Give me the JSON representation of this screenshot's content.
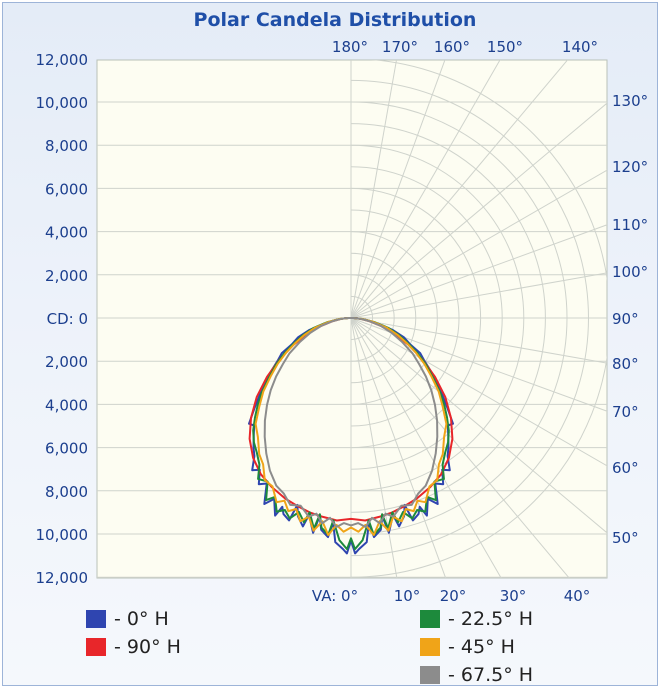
{
  "colors": {
    "plot_bg": "#fdfdf2",
    "grid": "#cfd3cc",
    "axis_text": "#1c3f8e",
    "title": "#1f4fa8"
  },
  "chart_data": {
    "type": "line",
    "title": "Polar Candela Distribution",
    "left_axis": {
      "ticks": [
        "12,000",
        "10,000",
        "8,000",
        "6,000",
        "4,000",
        "2,000",
        "CD: 0",
        "2,000",
        "4,000",
        "6,000",
        "8,000",
        "10,000",
        "12,000"
      ],
      "range": [
        -12000,
        12000
      ]
    },
    "top_angle_labels": [
      "180°",
      "170°",
      "160°",
      "150°",
      "140°"
    ],
    "right_angle_labels": [
      "130°",
      "120°",
      "110°",
      "100°",
      "90°",
      "80°",
      "70°",
      "60°",
      "50°"
    ],
    "bottom_labels": [
      "VA: 0°",
      "10°",
      "20°",
      "30°",
      "40°"
    ],
    "radial_rings_cd": [
      1000,
      2000,
      3000,
      4000,
      5000,
      6000,
      7000,
      8000,
      9000,
      10000,
      11000,
      12000
    ],
    "angle_spokes_deg": [
      0,
      10,
      20,
      30,
      40,
      50,
      60,
      70,
      80,
      90,
      100,
      110,
      120,
      130,
      140,
      150,
      160,
      170,
      180
    ],
    "series": [
      {
        "name": "- 0° H",
        "color": "#2f45b0",
        "points": [
          [
            0,
            10300
          ],
          [
            1,
            10900
          ],
          [
            2,
            10700
          ],
          [
            4,
            10400
          ],
          [
            5,
            9500
          ],
          [
            6,
            10200
          ],
          [
            8,
            9900
          ],
          [
            9,
            9300
          ],
          [
            10,
            10100
          ],
          [
            11,
            9700
          ],
          [
            12,
            9300
          ],
          [
            13,
            9900
          ],
          [
            15,
            9500
          ],
          [
            16,
            9000
          ],
          [
            17,
            9800
          ],
          [
            19,
            9600
          ],
          [
            20,
            9300
          ],
          [
            21,
            9800
          ],
          [
            23,
            9100
          ],
          [
            25,
            9500
          ],
          [
            27,
            8600
          ],
          [
            29,
            8800
          ],
          [
            31,
            8200
          ],
          [
            33,
            8400
          ],
          [
            35,
            7800
          ],
          [
            37,
            7500
          ],
          [
            40,
            7000
          ],
          [
            42,
            6700
          ],
          [
            44,
            6800
          ],
          [
            47,
            6100
          ],
          [
            50,
            5500
          ],
          [
            53,
            4900
          ],
          [
            56,
            4500
          ],
          [
            60,
            3900
          ],
          [
            63,
            3600
          ],
          [
            66,
            3000
          ],
          [
            70,
            2600
          ],
          [
            74,
            2000
          ],
          [
            78,
            1300
          ],
          [
            83,
            700
          ],
          [
            87,
            300
          ],
          [
            90,
            100
          ]
        ]
      },
      {
        "name": "- 90° H",
        "color": "#e8262a",
        "points": [
          [
            0,
            9300
          ],
          [
            4,
            9400
          ],
          [
            8,
            9300
          ],
          [
            12,
            9200
          ],
          [
            16,
            9050
          ],
          [
            20,
            8900
          ],
          [
            25,
            8650
          ],
          [
            30,
            8350
          ],
          [
            35,
            7900
          ],
          [
            40,
            7300
          ],
          [
            45,
            6550
          ],
          [
            50,
            5700
          ],
          [
            55,
            4750
          ],
          [
            60,
            3800
          ],
          [
            65,
            2950
          ],
          [
            70,
            2150
          ],
          [
            75,
            1450
          ],
          [
            80,
            900
          ],
          [
            85,
            450
          ],
          [
            90,
            120
          ]
        ]
      },
      {
        "name": "- 22.5° H",
        "color": "#1d8a3c",
        "points": [
          [
            0,
            10200
          ],
          [
            1,
            10700
          ],
          [
            3,
            10300
          ],
          [
            5,
            9400
          ],
          [
            6,
            10100
          ],
          [
            8,
            9800
          ],
          [
            9,
            9200
          ],
          [
            10,
            9900
          ],
          [
            12,
            9200
          ],
          [
            13,
            9700
          ],
          [
            15,
            9300
          ],
          [
            17,
            9700
          ],
          [
            19,
            9400
          ],
          [
            21,
            9600
          ],
          [
            23,
            9000
          ],
          [
            25,
            9300
          ],
          [
            27,
            8500
          ],
          [
            30,
            8600
          ],
          [
            32,
            8000
          ],
          [
            35,
            7600
          ],
          [
            38,
            7300
          ],
          [
            41,
            6900
          ],
          [
            44,
            6400
          ],
          [
            47,
            5900
          ],
          [
            50,
            5400
          ],
          [
            54,
            4700
          ],
          [
            58,
            4100
          ],
          [
            62,
            3500
          ],
          [
            66,
            2900
          ],
          [
            70,
            2400
          ],
          [
            75,
            1800
          ],
          [
            80,
            1100
          ],
          [
            85,
            500
          ],
          [
            90,
            120
          ]
        ]
      },
      {
        "name": "- 45° H",
        "color": "#f0a418",
        "points": [
          [
            0,
            9700
          ],
          [
            2,
            9900
          ],
          [
            4,
            9600
          ],
          [
            6,
            10100
          ],
          [
            8,
            9500
          ],
          [
            10,
            10000
          ],
          [
            12,
            9400
          ],
          [
            14,
            9700
          ],
          [
            16,
            9200
          ],
          [
            18,
            9400
          ],
          [
            20,
            9000
          ],
          [
            22,
            9200
          ],
          [
            25,
            8600
          ],
          [
            28,
            8500
          ],
          [
            31,
            7900
          ],
          [
            34,
            7600
          ],
          [
            38,
            7000
          ],
          [
            42,
            6600
          ],
          [
            46,
            5900
          ],
          [
            50,
            5300
          ],
          [
            54,
            4600
          ],
          [
            58,
            4000
          ],
          [
            62,
            3400
          ],
          [
            66,
            2800
          ],
          [
            70,
            2300
          ],
          [
            75,
            1700
          ],
          [
            80,
            1050
          ],
          [
            85,
            500
          ],
          [
            90,
            120
          ]
        ]
      },
      {
        "name": "- 67.5° H",
        "color": "#8c8c8c",
        "points": [
          [
            0,
            9600
          ],
          [
            2,
            9500
          ],
          [
            4,
            9700
          ],
          [
            6,
            9300
          ],
          [
            8,
            9600
          ],
          [
            10,
            9200
          ],
          [
            12,
            9400
          ],
          [
            15,
            9000
          ],
          [
            18,
            9100
          ],
          [
            21,
            8700
          ],
          [
            24,
            8500
          ],
          [
            28,
            8000
          ],
          [
            32,
            7400
          ],
          [
            36,
            6800
          ],
          [
            40,
            6200
          ],
          [
            44,
            5600
          ],
          [
            48,
            5000
          ],
          [
            52,
            4400
          ],
          [
            56,
            3800
          ],
          [
            60,
            3300
          ],
          [
            65,
            2600
          ],
          [
            70,
            2000
          ],
          [
            75,
            1450
          ],
          [
            80,
            900
          ],
          [
            85,
            450
          ],
          [
            90,
            120
          ]
        ]
      }
    ]
  }
}
